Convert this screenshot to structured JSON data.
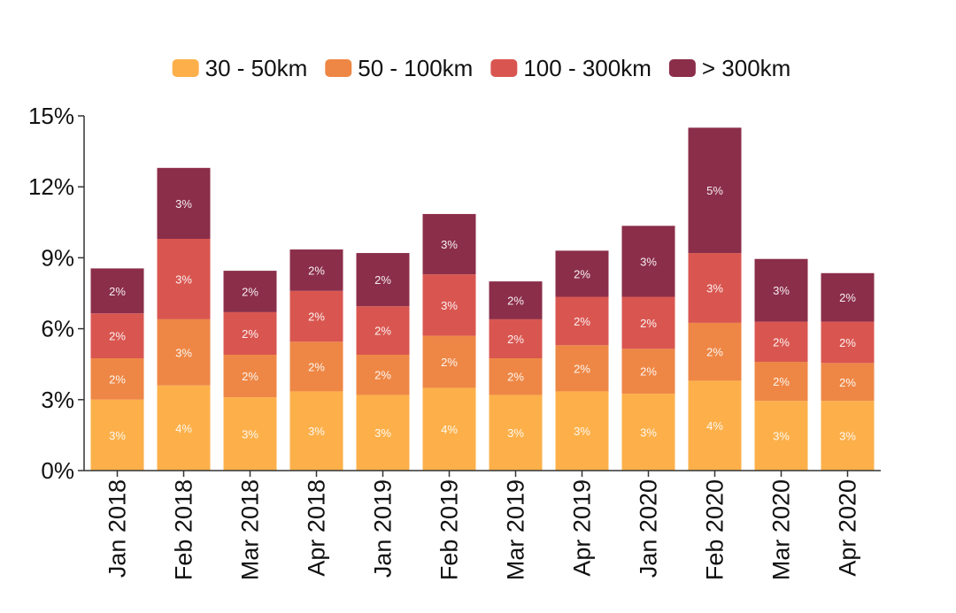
{
  "chart_data": {
    "type": "bar",
    "stacked": true,
    "title": "",
    "xlabel": "",
    "ylabel": "",
    "ylim": [
      0,
      15
    ],
    "yticks": [
      "0%",
      "3%",
      "6%",
      "9%",
      "12%",
      "15%"
    ],
    "ytick_values": [
      0,
      3,
      6,
      9,
      12,
      15
    ],
    "legend_position": "top-center",
    "grid": false,
    "categories": [
      "Jan 2018",
      "Feb 2018",
      "Mar 2018",
      "Apr 2018",
      "Jan 2019",
      "Feb 2019",
      "Mar 2019",
      "Apr 2019",
      "Jan 2020",
      "Feb 2020",
      "Mar 2020",
      "Apr 2020"
    ],
    "series": [
      {
        "name": "30 - 50km",
        "color": "#FDB04A",
        "values": [
          3.0,
          3.6,
          3.1,
          3.35,
          3.2,
          3.5,
          3.2,
          3.35,
          3.25,
          3.8,
          2.95,
          2.95
        ],
        "labels": [
          "3%",
          "4%",
          "3%",
          "3%",
          "3%",
          "4%",
          "3%",
          "3%",
          "3%",
          "4%",
          "3%",
          "3%"
        ]
      },
      {
        "name": "50 - 100km",
        "color": "#EE8745",
        "values": [
          1.75,
          2.8,
          1.8,
          2.1,
          1.7,
          2.2,
          1.55,
          1.95,
          1.9,
          2.45,
          1.65,
          1.6
        ],
        "labels": [
          "2%",
          "3%",
          "2%",
          "2%",
          "2%",
          "2%",
          "2%",
          "2%",
          "2%",
          "2%",
          "2%",
          "2%"
        ]
      },
      {
        "name": "100 - 300km",
        "color": "#D95650",
        "values": [
          1.9,
          3.4,
          1.8,
          2.15,
          2.05,
          2.6,
          1.65,
          2.05,
          2.2,
          2.95,
          1.7,
          1.75
        ],
        "labels": [
          "2%",
          "3%",
          "2%",
          "2%",
          "2%",
          "3%",
          "2%",
          "2%",
          "2%",
          "3%",
          "2%",
          "2%"
        ]
      },
      {
        "name": "> 300km",
        "color": "#8B2E4A",
        "values": [
          1.9,
          3.0,
          1.75,
          1.75,
          2.25,
          2.55,
          1.6,
          1.95,
          3.0,
          5.3,
          2.65,
          2.05
        ],
        "labels": [
          "2%",
          "3%",
          "2%",
          "2%",
          "2%",
          "3%",
          "2%",
          "2%",
          "3%",
          "5%",
          "3%",
          "2%"
        ]
      }
    ]
  }
}
